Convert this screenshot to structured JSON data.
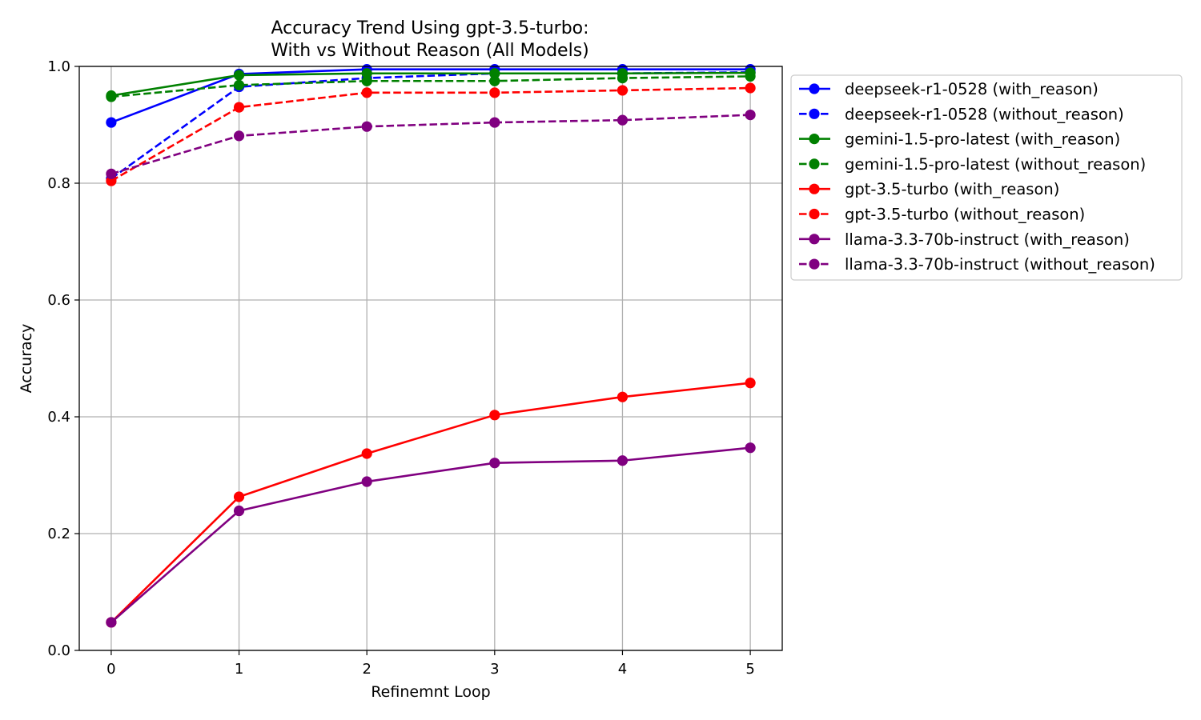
{
  "chart_data": {
    "type": "line",
    "title_line1": "Accuracy Trend Using gpt-3.5-turbo:",
    "title_line2": "With vs Without Reason (All Models)",
    "xlabel": "Refinemnt Loop",
    "ylabel": "Accuracy",
    "x": [
      0,
      1,
      2,
      3,
      4,
      5
    ],
    "xlim": [
      -0.25,
      5.25
    ],
    "ylim": [
      0.0,
      1.0
    ],
    "xticks": [
      "0",
      "1",
      "2",
      "3",
      "4",
      "5"
    ],
    "yticks": [
      "0.0",
      "0.2",
      "0.4",
      "0.6",
      "0.8",
      "1.0"
    ],
    "grid": true,
    "legend_position": "outside-right",
    "series": [
      {
        "name": "deepseek-r1-0528 (with_reason)",
        "color": "#0000ff",
        "dash": "solid",
        "values": [
          0.904,
          0.987,
          0.995,
          0.995,
          0.995,
          0.995
        ]
      },
      {
        "name": "deepseek-r1-0528 (without_reason)",
        "color": "#0000ff",
        "dash": "dashed",
        "values": [
          0.808,
          0.965,
          0.98,
          0.988,
          0.988,
          0.99
        ]
      },
      {
        "name": "gemini-1.5-pro-latest (with_reason)",
        "color": "#008000",
        "dash": "solid",
        "values": [
          0.95,
          0.985,
          0.988,
          0.988,
          0.988,
          0.989
        ]
      },
      {
        "name": "gemini-1.5-pro-latest (without_reason)",
        "color": "#008000",
        "dash": "dashed",
        "values": [
          0.948,
          0.968,
          0.975,
          0.975,
          0.98,
          0.983
        ]
      },
      {
        "name": "gpt-3.5-turbo (with_reason)",
        "color": "#ff0000",
        "dash": "solid",
        "values": [
          0.048,
          0.263,
          0.337,
          0.403,
          0.434,
          0.458
        ]
      },
      {
        "name": "gpt-3.5-turbo (without_reason)",
        "color": "#ff0000",
        "dash": "dashed",
        "values": [
          0.804,
          0.93,
          0.955,
          0.955,
          0.959,
          0.963
        ]
      },
      {
        "name": "llama-3.3-70b-instruct (with_reason)",
        "color": "#800080",
        "dash": "solid",
        "values": [
          0.048,
          0.239,
          0.289,
          0.321,
          0.325,
          0.347
        ]
      },
      {
        "name": "llama-3.3-70b-instruct (without_reason)",
        "color": "#800080",
        "dash": "dashed",
        "values": [
          0.816,
          0.881,
          0.897,
          0.904,
          0.908,
          0.917
        ]
      }
    ]
  }
}
